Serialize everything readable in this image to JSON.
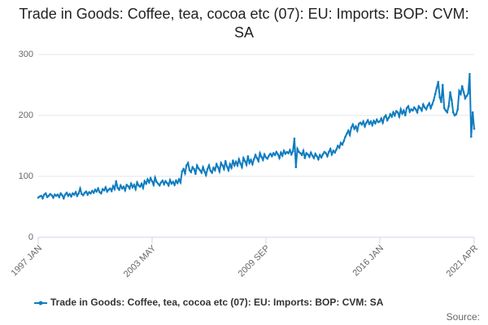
{
  "chart_data": {
    "type": "line",
    "title": "Trade in Goods: Coffee, tea, cocoa etc (07): EU: Imports: BOP: CVM: SA",
    "source": "Source:",
    "ylim": [
      0,
      300
    ],
    "yticks": [
      0,
      100,
      200,
      300
    ],
    "grid": true,
    "xticks": [
      "1997 JAN",
      "2003 MAY",
      "2009 SEP",
      "2016 JAN",
      "2021 APR"
    ],
    "x": [
      "1997 JAN",
      "1997 FEB",
      "1997 MAR",
      "1997 APR",
      "1997 MAY",
      "1997 JUN",
      "1997 JUL",
      "1997 AUG",
      "1997 SEP",
      "1997 OCT",
      "1997 NOV",
      "1997 DEC",
      "1998 JAN",
      "1998 FEB",
      "1998 MAR",
      "1998 APR",
      "1998 MAY",
      "1998 JUN",
      "1998 JUL",
      "1998 AUG",
      "1998 SEP",
      "1998 OCT",
      "1998 NOV",
      "1998 DEC",
      "1999 JAN",
      "1999 FEB",
      "1999 MAR",
      "1999 APR",
      "1999 MAY",
      "1999 JUN",
      "1999 JUL",
      "1999 AUG",
      "1999 SEP",
      "1999 OCT",
      "1999 NOV",
      "1999 DEC",
      "2000 JAN",
      "2000 FEB",
      "2000 MAR",
      "2000 APR",
      "2000 MAY",
      "2000 JUN",
      "2000 JUL",
      "2000 AUG",
      "2000 SEP",
      "2000 OCT",
      "2000 NOV",
      "2000 DEC",
      "2001 JAN",
      "2001 FEB",
      "2001 MAR",
      "2001 APR",
      "2001 MAY",
      "2001 JUN",
      "2001 JUL",
      "2001 AUG",
      "2001 SEP",
      "2001 OCT",
      "2001 NOV",
      "2001 DEC",
      "2002 JAN",
      "2002 FEB",
      "2002 MAR",
      "2002 APR",
      "2002 MAY",
      "2002 JUN",
      "2002 JUL",
      "2002 AUG",
      "2002 SEP",
      "2002 OCT",
      "2002 NOV",
      "2002 DEC",
      "2003 JAN",
      "2003 FEB",
      "2003 MAR",
      "2003 APR",
      "2003 MAY",
      "2003 JUN",
      "2003 JUL",
      "2003 AUG",
      "2003 SEP",
      "2003 OCT",
      "2003 NOV",
      "2003 DEC",
      "2004 JAN",
      "2004 FEB",
      "2004 MAR",
      "2004 APR",
      "2004 MAY",
      "2004 JUN",
      "2004 JUL",
      "2004 AUG",
      "2004 SEP",
      "2004 OCT",
      "2004 NOV",
      "2004 DEC",
      "2005 JAN",
      "2005 FEB",
      "2005 MAR",
      "2005 APR",
      "2005 MAY",
      "2005 JUN",
      "2005 JUL",
      "2005 AUG",
      "2005 SEP",
      "2005 OCT",
      "2005 NOV",
      "2005 DEC",
      "2006 JAN",
      "2006 FEB",
      "2006 MAR",
      "2006 APR",
      "2006 MAY",
      "2006 JUN",
      "2006 JUL",
      "2006 AUG",
      "2006 SEP",
      "2006 OCT",
      "2006 NOV",
      "2006 DEC",
      "2007 JAN",
      "2007 FEB",
      "2007 MAR",
      "2007 APR",
      "2007 MAY",
      "2007 JUN",
      "2007 JUL",
      "2007 AUG",
      "2007 SEP",
      "2007 OCT",
      "2007 NOV",
      "2007 DEC",
      "2008 JAN",
      "2008 FEB",
      "2008 MAR",
      "2008 APR",
      "2008 MAY",
      "2008 JUN",
      "2008 JUL",
      "2008 AUG",
      "2008 SEP",
      "2008 OCT",
      "2008 NOV",
      "2008 DEC",
      "2009 JAN",
      "2009 FEB",
      "2009 MAR",
      "2009 APR",
      "2009 MAY",
      "2009 JUN",
      "2009 JUL",
      "2009 AUG",
      "2009 SEP",
      "2009 OCT",
      "2009 NOV",
      "2009 DEC",
      "2010 JAN",
      "2010 FEB",
      "2010 MAR",
      "2010 APR",
      "2010 MAY",
      "2010 JUN",
      "2010 JUL",
      "2010 AUG",
      "2010 SEP",
      "2010 OCT",
      "2010 NOV",
      "2010 DEC",
      "2011 JAN",
      "2011 FEB",
      "2011 MAR",
      "2011 APR",
      "2011 MAY",
      "2011 JUN",
      "2011 JUL",
      "2011 AUG",
      "2011 SEP",
      "2011 OCT",
      "2011 NOV",
      "2011 DEC",
      "2012 JAN",
      "2012 FEB",
      "2012 MAR",
      "2012 APR",
      "2012 MAY",
      "2012 JUN",
      "2012 JUL",
      "2012 AUG",
      "2012 SEP",
      "2012 OCT",
      "2012 NOV",
      "2012 DEC",
      "2013 JAN",
      "2013 FEB",
      "2013 MAR",
      "2013 APR",
      "2013 MAY",
      "2013 JUN",
      "2013 JUL",
      "2013 AUG",
      "2013 SEP",
      "2013 OCT",
      "2013 NOV",
      "2013 DEC",
      "2014 JAN",
      "2014 FEB",
      "2014 MAR",
      "2014 APR",
      "2014 MAY",
      "2014 JUN",
      "2014 JUL",
      "2014 AUG",
      "2014 SEP",
      "2014 OCT",
      "2014 NOV",
      "2014 DEC",
      "2015 JAN",
      "2015 FEB",
      "2015 MAR",
      "2015 APR",
      "2015 MAY",
      "2015 JUN",
      "2015 JUL",
      "2015 AUG",
      "2015 SEP",
      "2015 OCT",
      "2015 NOV",
      "2015 DEC",
      "2016 JAN",
      "2016 FEB",
      "2016 MAR",
      "2016 APR",
      "2016 MAY",
      "2016 JUN",
      "2016 JUL",
      "2016 AUG",
      "2016 SEP",
      "2016 OCT",
      "2016 NOV",
      "2016 DEC",
      "2017 JAN",
      "2017 FEB",
      "2017 MAR",
      "2017 APR",
      "2017 MAY",
      "2017 JUN",
      "2017 JUL",
      "2017 AUG",
      "2017 SEP",
      "2017 OCT",
      "2017 NOV",
      "2017 DEC",
      "2018 JAN",
      "2018 FEB",
      "2018 MAR",
      "2018 APR",
      "2018 MAY",
      "2018 JUN",
      "2018 JUL",
      "2018 AUG",
      "2018 SEP",
      "2018 OCT",
      "2018 NOV",
      "2018 DEC",
      "2019 JAN",
      "2019 FEB",
      "2019 MAR",
      "2019 APR",
      "2019 MAY",
      "2019 JUN",
      "2019 JUL",
      "2019 AUG",
      "2019 SEP",
      "2019 OCT",
      "2019 NOV",
      "2019 DEC",
      "2020 JAN",
      "2020 FEB",
      "2020 MAR",
      "2020 APR",
      "2020 MAY",
      "2020 JUN",
      "2020 JUL",
      "2020 AUG",
      "2020 SEP",
      "2020 OCT",
      "2020 NOV",
      "2020 DEC",
      "2021 JAN",
      "2021 FEB",
      "2021 MAR",
      "2021 APR"
    ],
    "series": [
      {
        "name": "Trade in Goods: Coffee, tea, cocoa etc (07): EU: Imports: BOP: CVM: SA",
        "color": "#0f7cc0",
        "values": [
          65,
          67,
          68,
          64,
          70,
          72,
          66,
          68,
          71,
          69,
          65,
          70,
          68,
          70,
          66,
          72,
          69,
          64,
          70,
          73,
          68,
          71,
          67,
          72,
          70,
          74,
          68,
          72,
          80,
          71,
          69,
          73,
          75,
          70,
          74,
          72,
          76,
          73,
          78,
          75,
          80,
          74,
          72,
          79,
          77,
          82,
          75,
          78,
          80,
          76,
          84,
          79,
          92,
          81,
          78,
          85,
          80,
          83,
          77,
          86,
          84,
          80,
          88,
          82,
          86,
          79,
          90,
          85,
          83,
          88,
          81,
          92,
          88,
          95,
          90,
          97,
          92,
          86,
          98,
          91,
          88,
          85,
          90,
          93,
          87,
          92,
          89,
          85,
          94,
          88,
          91,
          86,
          93,
          89,
          95,
          90,
          108,
          112,
          105,
          118,
          122,
          110,
          107,
          115,
          112,
          104,
          118,
          113,
          110,
          106,
          115,
          108,
          102,
          112,
          118,
          109,
          106,
          114,
          110,
          120,
          115,
          108,
          122,
          118,
          112,
          125,
          116,
          110,
          120,
          114,
          126,
          118,
          124,
          118,
          128,
          121,
          115,
          130,
          125,
          119,
          133,
          122,
          127,
          120,
          128,
          135,
          130,
          125,
          138,
          132,
          127,
          136,
          131,
          129,
          134,
          137,
          133,
          138,
          135,
          140,
          136,
          130,
          139,
          134,
          142,
          137,
          140,
          138,
          143,
          136,
          141,
          162,
          115,
          145,
          140,
          138,
          135,
          142,
          130,
          138,
          136,
          132,
          139,
          134,
          130,
          137,
          133,
          128,
          135,
          131,
          136,
          140,
          138,
          133,
          140,
          145,
          136,
          142,
          139,
          144,
          150,
          147,
          155,
          152,
          158,
          165,
          170,
          175,
          168,
          180,
          185,
          178,
          182,
          175,
          186,
          188,
          185,
          190,
          182,
          188,
          192,
          186,
          190,
          184,
          191,
          187,
          193,
          189,
          190,
          195,
          188,
          197,
          200,
          192,
          196,
          202,
          198,
          205,
          200,
          207,
          205,
          198,
          210,
          203,
          208,
          200,
          212,
          215,
          206,
          210,
          208,
          213,
          210,
          205,
          215,
          212,
          208,
          218,
          213,
          210,
          216,
          220,
          212,
          218,
          225,
          235,
          245,
          255,
          230,
          222,
          250,
          212,
          208,
          205,
          215,
          238,
          225,
          205,
          200,
          202,
          210,
          240,
          235,
          248,
          238,
          228,
          232,
          236,
          268,
          165,
          205,
          178
        ]
      }
    ]
  }
}
